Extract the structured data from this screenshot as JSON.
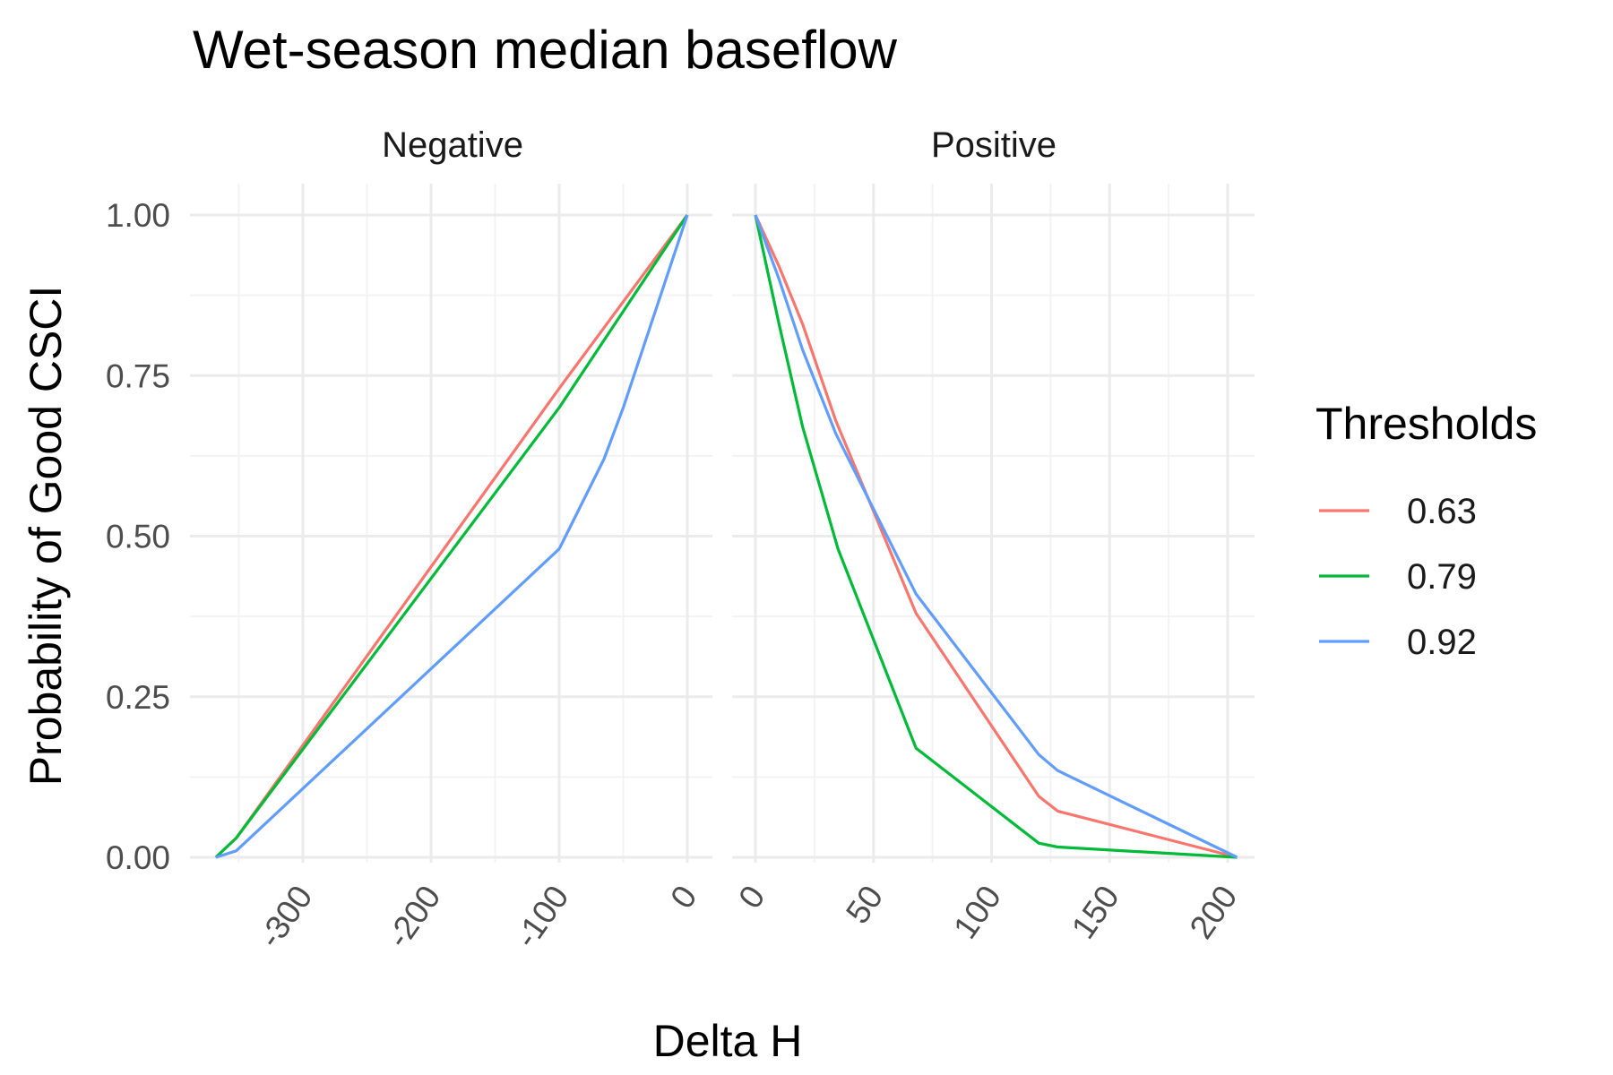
{
  "chart_data": {
    "type": "line",
    "title": "Wet-season median baseflow",
    "xlabel": "Delta H",
    "ylabel": "Probability of Good CSCI",
    "ylim": [
      0,
      1
    ],
    "yticks": [
      "0.00",
      "0.25",
      "0.50",
      "0.75",
      "1.00"
    ],
    "yvalues": [
      0,
      0.25,
      0.5,
      0.75,
      1
    ],
    "legend": {
      "title": "Thresholds",
      "position": "right"
    },
    "grid": true,
    "facets": [
      {
        "name": "Negative",
        "xlim": [
          -365,
          0
        ],
        "xticks": [
          "-300",
          "-200",
          "-100",
          "0"
        ],
        "xtick_values": [
          -300,
          -200,
          -100,
          0
        ],
        "series": [
          {
            "name": "0.63",
            "color": "#F8766D",
            "x": [
              -368,
              -352,
              -100,
              0
            ],
            "y": [
              0,
              0.03,
              0.73,
              1
            ]
          },
          {
            "name": "0.79",
            "color": "#00BA38",
            "x": [
              -368,
              -352,
              -100,
              0
            ],
            "y": [
              0,
              0.03,
              0.7,
              1
            ]
          },
          {
            "name": "0.92",
            "color": "#619CFF",
            "x": [
              -368,
              -352,
              -100,
              -65,
              -50,
              0
            ],
            "y": [
              0,
              0.01,
              0.48,
              0.62,
              0.7,
              1
            ]
          }
        ]
      },
      {
        "name": "Positive",
        "xlim": [
          0,
          205
        ],
        "xticks": [
          "0",
          "50",
          "100",
          "150",
          "200"
        ],
        "xtick_values": [
          0,
          50,
          100,
          150,
          200
        ],
        "series": [
          {
            "name": "0.63",
            "color": "#F8766D",
            "x": [
              0,
              10,
              20,
              34,
              68,
              120,
              128,
              204
            ],
            "y": [
              1,
              0.92,
              0.83,
              0.68,
              0.38,
              0.095,
              0.072,
              0
            ]
          },
          {
            "name": "0.79",
            "color": "#00BA38",
            "x": [
              0,
              10,
              20,
              35,
              68,
              120,
              128,
              204
            ],
            "y": [
              1,
              0.83,
              0.67,
              0.48,
              0.17,
              0.022,
              0.016,
              0
            ]
          },
          {
            "name": "0.92",
            "color": "#619CFF",
            "x": [
              0,
              10,
              20,
              34,
              68,
              120,
              128,
              204
            ],
            "y": [
              1,
              0.9,
              0.79,
              0.66,
              0.41,
              0.16,
              0.135,
              0
            ]
          }
        ]
      }
    ]
  }
}
